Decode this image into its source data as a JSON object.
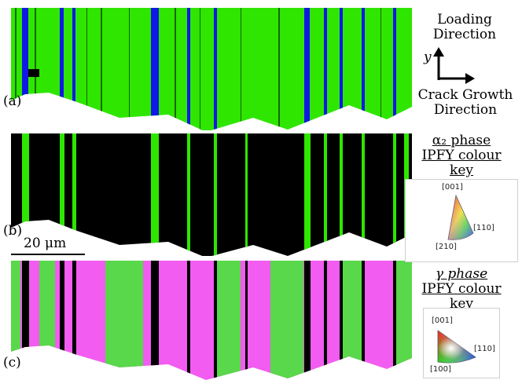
{
  "panels": {
    "a": "(a)",
    "b": "(b)",
    "c": "(c)"
  },
  "axes": {
    "y_label": "y",
    "loading_direction": [
      "Loading",
      "Direction"
    ],
    "crack_growth_direction": [
      "Crack Growth",
      "Direction"
    ]
  },
  "scale_bar": "20 μm",
  "alpha2_key": {
    "title": "α₂ phase",
    "subtitle": [
      "IPFY colour",
      "key"
    ],
    "labels": [
      "[001]",
      "[110]",
      "[210]"
    ]
  },
  "gamma_key": {
    "title": "γ phase",
    "subtitle": [
      "IPFY colour",
      "key"
    ],
    "labels": [
      "[001]",
      "[110]",
      "[100]"
    ]
  },
  "colors": {
    "green": "#2fe600",
    "blue": "#0f19e6",
    "black": "#000000",
    "magenta": "#f25cf0"
  }
}
